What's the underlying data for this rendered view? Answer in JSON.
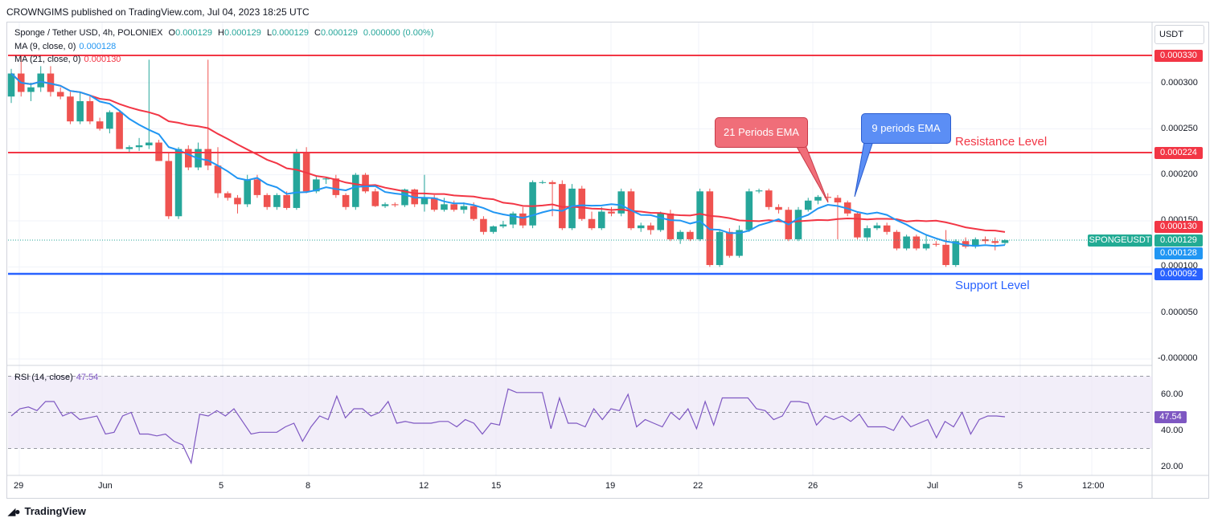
{
  "header": {
    "publisher": "CROWNGIMS published on TradingView.com, Jul 04, 2023 18:25 UTC"
  },
  "legend": {
    "symbol_line": "Sponge / Tether USD, 4h, POLONIEX",
    "o_label": "O",
    "o": "0.000129",
    "h_label": "H",
    "h": "0.000129",
    "l_label": "L",
    "l": "0.000129",
    "c_label": "C",
    "c": "0.000129",
    "change": "0.000000 (0.00%)",
    "ma9_label": "MA (9, close, 0)",
    "ma9": "0.000128",
    "ma21_label": "MA (21, close, 0)",
    "ma21": "0.000130",
    "rsi_label": "RSI (14, close)",
    "rsi": "47.54"
  },
  "currency": "USDT",
  "price_axis": [
    "0.000300",
    "0.000250",
    "0.000200",
    "0.000150",
    "0.000100",
    "0.000050",
    "-0.000000"
  ],
  "rsi_axis": [
    "60.00",
    "40.00",
    "20.00"
  ],
  "time_axis": [
    "29",
    "Jun",
    "5",
    "8",
    "12",
    "15",
    "19",
    "22",
    "26",
    "Jul",
    "5",
    "12:00"
  ],
  "price_tags": {
    "resistance_top": "0.000330",
    "resistance": "0.000224",
    "ma21": "0.000130",
    "symbol_name": "SPONGEUSDT",
    "last": "0.000129",
    "ma9": "0.000128",
    "support": "0.000092",
    "rsi": "47.54"
  },
  "annotations": {
    "ema21": "21 Periods EMA",
    "ema9": "9 periods EMA",
    "resistance": "Resistance Level",
    "support": "Support Level"
  },
  "brand": "TradingView",
  "colors": {
    "up": "#26a69a",
    "down": "#ef5350",
    "ma9": "#2196f3",
    "ma21": "#f23645",
    "resistance": "#f23645",
    "support": "#2962ff",
    "rsi": "#7e57c2",
    "rsi_band": "#ede7f6"
  },
  "chart_data": {
    "type": "candlestick",
    "title": "Sponge / Tether USD, 4h, POLONIEX",
    "ylim": [
      -1e-05,
      0.00038
    ],
    "resistance_levels": [
      0.00033,
      0.000224
    ],
    "support_level": 9.2e-05,
    "candles": [
      {
        "o": 0.000285,
        "h": 0.000315,
        "l": 0.000278,
        "c": 0.00031
      },
      {
        "o": 0.00031,
        "h": 0.00033,
        "l": 0.000285,
        "c": 0.00029
      },
      {
        "o": 0.00029,
        "h": 0.0003,
        "l": 0.00028,
        "c": 0.000295
      },
      {
        "o": 0.000295,
        "h": 0.000318,
        "l": 0.00029,
        "c": 0.00031
      },
      {
        "o": 0.00031,
        "h": 0.000318,
        "l": 0.000285,
        "c": 0.00029
      },
      {
        "o": 0.00029,
        "h": 0.000295,
        "l": 0.000282,
        "c": 0.000285
      },
      {
        "o": 0.000285,
        "h": 0.00029,
        "l": 0.000255,
        "c": 0.000258
      },
      {
        "o": 0.000258,
        "h": 0.00029,
        "l": 0.000255,
        "c": 0.00028
      },
      {
        "o": 0.00028,
        "h": 0.000285,
        "l": 0.000255,
        "c": 0.000258
      },
      {
        "o": 0.000258,
        "h": 0.000262,
        "l": 0.000248,
        "c": 0.00025
      },
      {
        "o": 0.00025,
        "h": 0.00027,
        "l": 0.000245,
        "c": 0.000268
      },
      {
        "o": 0.000268,
        "h": 0.00027,
        "l": 0.000228,
        "c": 0.000228
      },
      {
        "o": 0.000228,
        "h": 0.000232,
        "l": 0.000225,
        "c": 0.00023
      },
      {
        "o": 0.00023,
        "h": 0.00024,
        "l": 0.000226,
        "c": 0.000232
      },
      {
        "o": 0.000232,
        "h": 0.000325,
        "l": 0.000228,
        "c": 0.000235
      },
      {
        "o": 0.000235,
        "h": 0.000238,
        "l": 0.000215,
        "c": 0.000215
      },
      {
        "o": 0.000215,
        "h": 0.000225,
        "l": 0.000152,
        "c": 0.000155
      },
      {
        "o": 0.000155,
        "h": 0.00023,
        "l": 0.000152,
        "c": 0.000228
      },
      {
        "o": 0.000228,
        "h": 0.000232,
        "l": 0.000205,
        "c": 0.000208
      },
      {
        "o": 0.000208,
        "h": 0.000235,
        "l": 0.000205,
        "c": 0.000228
      },
      {
        "o": 0.000228,
        "h": 0.000325,
        "l": 0.000205,
        "c": 0.00021
      },
      {
        "o": 0.00021,
        "h": 0.00023,
        "l": 0.000175,
        "c": 0.00018
      },
      {
        "o": 0.00018,
        "h": 0.000182,
        "l": 0.000172,
        "c": 0.000175
      },
      {
        "o": 0.000175,
        "h": 0.000178,
        "l": 0.000158,
        "c": 0.000168
      },
      {
        "o": 0.000168,
        "h": 0.0002,
        "l": 0.000165,
        "c": 0.000195
      },
      {
        "o": 0.000195,
        "h": 0.0002,
        "l": 0.000175,
        "c": 0.000178
      },
      {
        "o": 0.000178,
        "h": 0.00018,
        "l": 0.000162,
        "c": 0.000165
      },
      {
        "o": 0.000165,
        "h": 0.00018,
        "l": 0.000162,
        "c": 0.000178
      },
      {
        "o": 0.000178,
        "h": 0.000182,
        "l": 0.000162,
        "c": 0.000164
      },
      {
        "o": 0.000164,
        "h": 0.000228,
        "l": 0.000162,
        "c": 0.000225
      },
      {
        "o": 0.000225,
        "h": 0.00023,
        "l": 0.00018,
        "c": 0.000182
      },
      {
        "o": 0.000182,
        "h": 0.000198,
        "l": 0.00018,
        "c": 0.000195
      },
      {
        "o": 0.000195,
        "h": 0.000198,
        "l": 0.00019,
        "c": 0.000196
      },
      {
        "o": 0.000196,
        "h": 0.0002,
        "l": 0.000175,
        "c": 0.000178
      },
      {
        "o": 0.000178,
        "h": 0.00018,
        "l": 0.000162,
        "c": 0.000165
      },
      {
        "o": 0.000165,
        "h": 0.000202,
        "l": 0.000162,
        "c": 0.0002
      },
      {
        "o": 0.0002,
        "h": 0.000202,
        "l": 0.00018,
        "c": 0.000182
      },
      {
        "o": 0.000182,
        "h": 0.000185,
        "l": 0.000165,
        "c": 0.000166
      },
      {
        "o": 0.000166,
        "h": 0.00017,
        "l": 0.000164,
        "c": 0.000168
      },
      {
        "o": 0.000168,
        "h": 0.00017,
        "l": 0.000165,
        "c": 0.000167
      },
      {
        "o": 0.000167,
        "h": 0.000185,
        "l": 0.000165,
        "c": 0.000184
      },
      {
        "o": 0.000184,
        "h": 0.000185,
        "l": 0.000165,
        "c": 0.000168
      },
      {
        "o": 0.000168,
        "h": 0.0002,
        "l": 0.00016,
        "c": 0.000175
      },
      {
        "o": 0.000175,
        "h": 0.000178,
        "l": 0.00016,
        "c": 0.000162
      },
      {
        "o": 0.000162,
        "h": 0.000175,
        "l": 0.00016,
        "c": 0.000168
      },
      {
        "o": 0.000168,
        "h": 0.000172,
        "l": 0.00016,
        "c": 0.000162
      },
      {
        "o": 0.000162,
        "h": 0.00017,
        "l": 0.000158,
        "c": 0.000166
      },
      {
        "o": 0.000166,
        "h": 0.00017,
        "l": 0.00015,
        "c": 0.000152
      },
      {
        "o": 0.000152,
        "h": 0.000155,
        "l": 0.000135,
        "c": 0.000138
      },
      {
        "o": 0.000138,
        "h": 0.000145,
        "l": 0.000136,
        "c": 0.000144
      },
      {
        "o": 0.000144,
        "h": 0.00015,
        "l": 0.000142,
        "c": 0.000146
      },
      {
        "o": 0.000146,
        "h": 0.00016,
        "l": 0.000142,
        "c": 0.000158
      },
      {
        "o": 0.000158,
        "h": 0.000165,
        "l": 0.000142,
        "c": 0.000145
      },
      {
        "o": 0.000145,
        "h": 0.000194,
        "l": 0.000142,
        "c": 0.000192
      },
      {
        "o": 0.000192,
        "h": 0.000194,
        "l": 0.00019,
        "c": 0.000192
      },
      {
        "o": 0.000192,
        "h": 0.000194,
        "l": 0.000155,
        "c": 0.00019
      },
      {
        "o": 0.00019,
        "h": 0.000194,
        "l": 0.00014,
        "c": 0.000142
      },
      {
        "o": 0.000142,
        "h": 0.00019,
        "l": 0.00014,
        "c": 0.000185
      },
      {
        "o": 0.000185,
        "h": 0.000188,
        "l": 0.00015,
        "c": 0.000152
      },
      {
        "o": 0.000152,
        "h": 0.00016,
        "l": 0.00014,
        "c": 0.000142
      },
      {
        "o": 0.000142,
        "h": 0.000165,
        "l": 0.00014,
        "c": 0.00016
      },
      {
        "o": 0.00016,
        "h": 0.000165,
        "l": 0.000155,
        "c": 0.000158
      },
      {
        "o": 0.000158,
        "h": 0.000185,
        "l": 0.000155,
        "c": 0.000182
      },
      {
        "o": 0.000182,
        "h": 0.000185,
        "l": 0.00014,
        "c": 0.000142
      },
      {
        "o": 0.000142,
        "h": 0.000148,
        "l": 0.000138,
        "c": 0.000145
      },
      {
        "o": 0.000145,
        "h": 0.000148,
        "l": 0.000135,
        "c": 0.00014
      },
      {
        "o": 0.00014,
        "h": 0.00016,
        "l": 0.000138,
        "c": 0.000158
      },
      {
        "o": 0.000158,
        "h": 0.000162,
        "l": 0.000128,
        "c": 0.00013
      },
      {
        "o": 0.00013,
        "h": 0.00014,
        "l": 0.000125,
        "c": 0.000138
      },
      {
        "o": 0.000138,
        "h": 0.00014,
        "l": 0.000128,
        "c": 0.00013
      },
      {
        "o": 0.00013,
        "h": 0.000185,
        "l": 0.000128,
        "c": 0.000182
      },
      {
        "o": 0.000182,
        "h": 0.000185,
        "l": 0.0001,
        "c": 0.000102
      },
      {
        "o": 0.000102,
        "h": 0.00014,
        "l": 0.0001,
        "c": 0.000138
      },
      {
        "o": 0.000138,
        "h": 0.000142,
        "l": 0.00011,
        "c": 0.000112
      },
      {
        "o": 0.000112,
        "h": 0.000145,
        "l": 0.00011,
        "c": 0.00014
      },
      {
        "o": 0.00014,
        "h": 0.000185,
        "l": 0.000138,
        "c": 0.000182
      },
      {
        "o": 0.000182,
        "h": 0.000185,
        "l": 0.00018,
        "c": 0.000183
      },
      {
        "o": 0.000183,
        "h": 0.000185,
        "l": 0.000162,
        "c": 0.000165
      },
      {
        "o": 0.000165,
        "h": 0.000168,
        "l": 0.000158,
        "c": 0.000162
      },
      {
        "o": 0.000162,
        "h": 0.000165,
        "l": 0.000128,
        "c": 0.00013
      },
      {
        "o": 0.00013,
        "h": 0.000165,
        "l": 0.000128,
        "c": 0.000162
      },
      {
        "o": 0.000162,
        "h": 0.000175,
        "l": 0.00016,
        "c": 0.000172
      },
      {
        "o": 0.000172,
        "h": 0.000178,
        "l": 0.000168,
        "c": 0.000176
      },
      {
        "o": 0.000176,
        "h": 0.00018,
        "l": 0.00017,
        "c": 0.000175
      },
      {
        "o": 0.000175,
        "h": 0.000178,
        "l": 0.00013,
        "c": 0.00017
      },
      {
        "o": 0.00017,
        "h": 0.000172,
        "l": 0.000155,
        "c": 0.000158
      },
      {
        "o": 0.000158,
        "h": 0.00016,
        "l": 0.00013,
        "c": 0.000132
      },
      {
        "o": 0.000132,
        "h": 0.000145,
        "l": 0.000128,
        "c": 0.000142
      },
      {
        "o": 0.000142,
        "h": 0.000148,
        "l": 0.00014,
        "c": 0.000145
      },
      {
        "o": 0.000145,
        "h": 0.000148,
        "l": 0.000135,
        "c": 0.000138
      },
      {
        "o": 0.000138,
        "h": 0.00014,
        "l": 0.000118,
        "c": 0.00012
      },
      {
        "o": 0.00012,
        "h": 0.000135,
        "l": 0.000118,
        "c": 0.000133
      },
      {
        "o": 0.000133,
        "h": 0.000135,
        "l": 0.000118,
        "c": 0.00012
      },
      {
        "o": 0.00012,
        "h": 0.000135,
        "l": 0.000118,
        "c": 0.000125
      },
      {
        "o": 0.000125,
        "h": 0.000128,
        "l": 0.000122,
        "c": 0.000124
      },
      {
        "o": 0.000124,
        "h": 0.00014,
        "l": 0.0001,
        "c": 0.000102
      },
      {
        "o": 0.000102,
        "h": 0.00013,
        "l": 0.0001,
        "c": 0.000128
      },
      {
        "o": 0.000128,
        "h": 0.000132,
        "l": 0.00012,
        "c": 0.000122
      },
      {
        "o": 0.000122,
        "h": 0.000132,
        "l": 0.00012,
        "c": 0.00013
      },
      {
        "o": 0.00013,
        "h": 0.000133,
        "l": 0.000125,
        "c": 0.000128
      },
      {
        "o": 0.000128,
        "h": 0.000132,
        "l": 0.000118,
        "c": 0.000126
      },
      {
        "o": 0.000126,
        "h": 0.00013,
        "l": 0.000124,
        "c": 0.000129
      }
    ],
    "rsi_values": [
      48,
      52,
      53,
      51,
      56,
      56,
      48,
      50,
      46,
      47,
      48,
      38,
      39,
      48,
      50,
      38,
      38,
      37,
      38,
      34,
      32,
      22,
      49,
      48,
      51,
      48,
      52,
      45,
      38,
      39,
      39,
      39,
      42,
      44,
      34,
      42,
      48,
      46,
      59,
      47,
      52,
      52,
      48,
      50,
      56,
      44,
      45,
      44,
      44,
      44,
      45,
      45,
      42,
      46,
      44,
      38,
      44,
      43,
      63,
      61,
      61,
      61,
      61,
      41,
      58,
      44,
      44,
      42,
      52,
      46,
      52,
      51,
      60,
      42,
      46,
      44,
      42,
      50,
      46,
      52,
      41,
      56,
      43,
      58,
      58,
      58,
      58,
      52,
      51,
      46,
      48,
      56,
      56,
      55,
      43,
      48,
      46,
      48,
      45,
      49,
      42,
      42,
      42,
      40,
      48,
      42,
      44,
      46,
      36,
      45,
      42,
      50,
      38,
      46,
      48,
      48,
      47.54
    ],
    "rsi_bands": [
      70,
      50,
      30
    ],
    "rsi_ylim": [
      15,
      75
    ]
  }
}
